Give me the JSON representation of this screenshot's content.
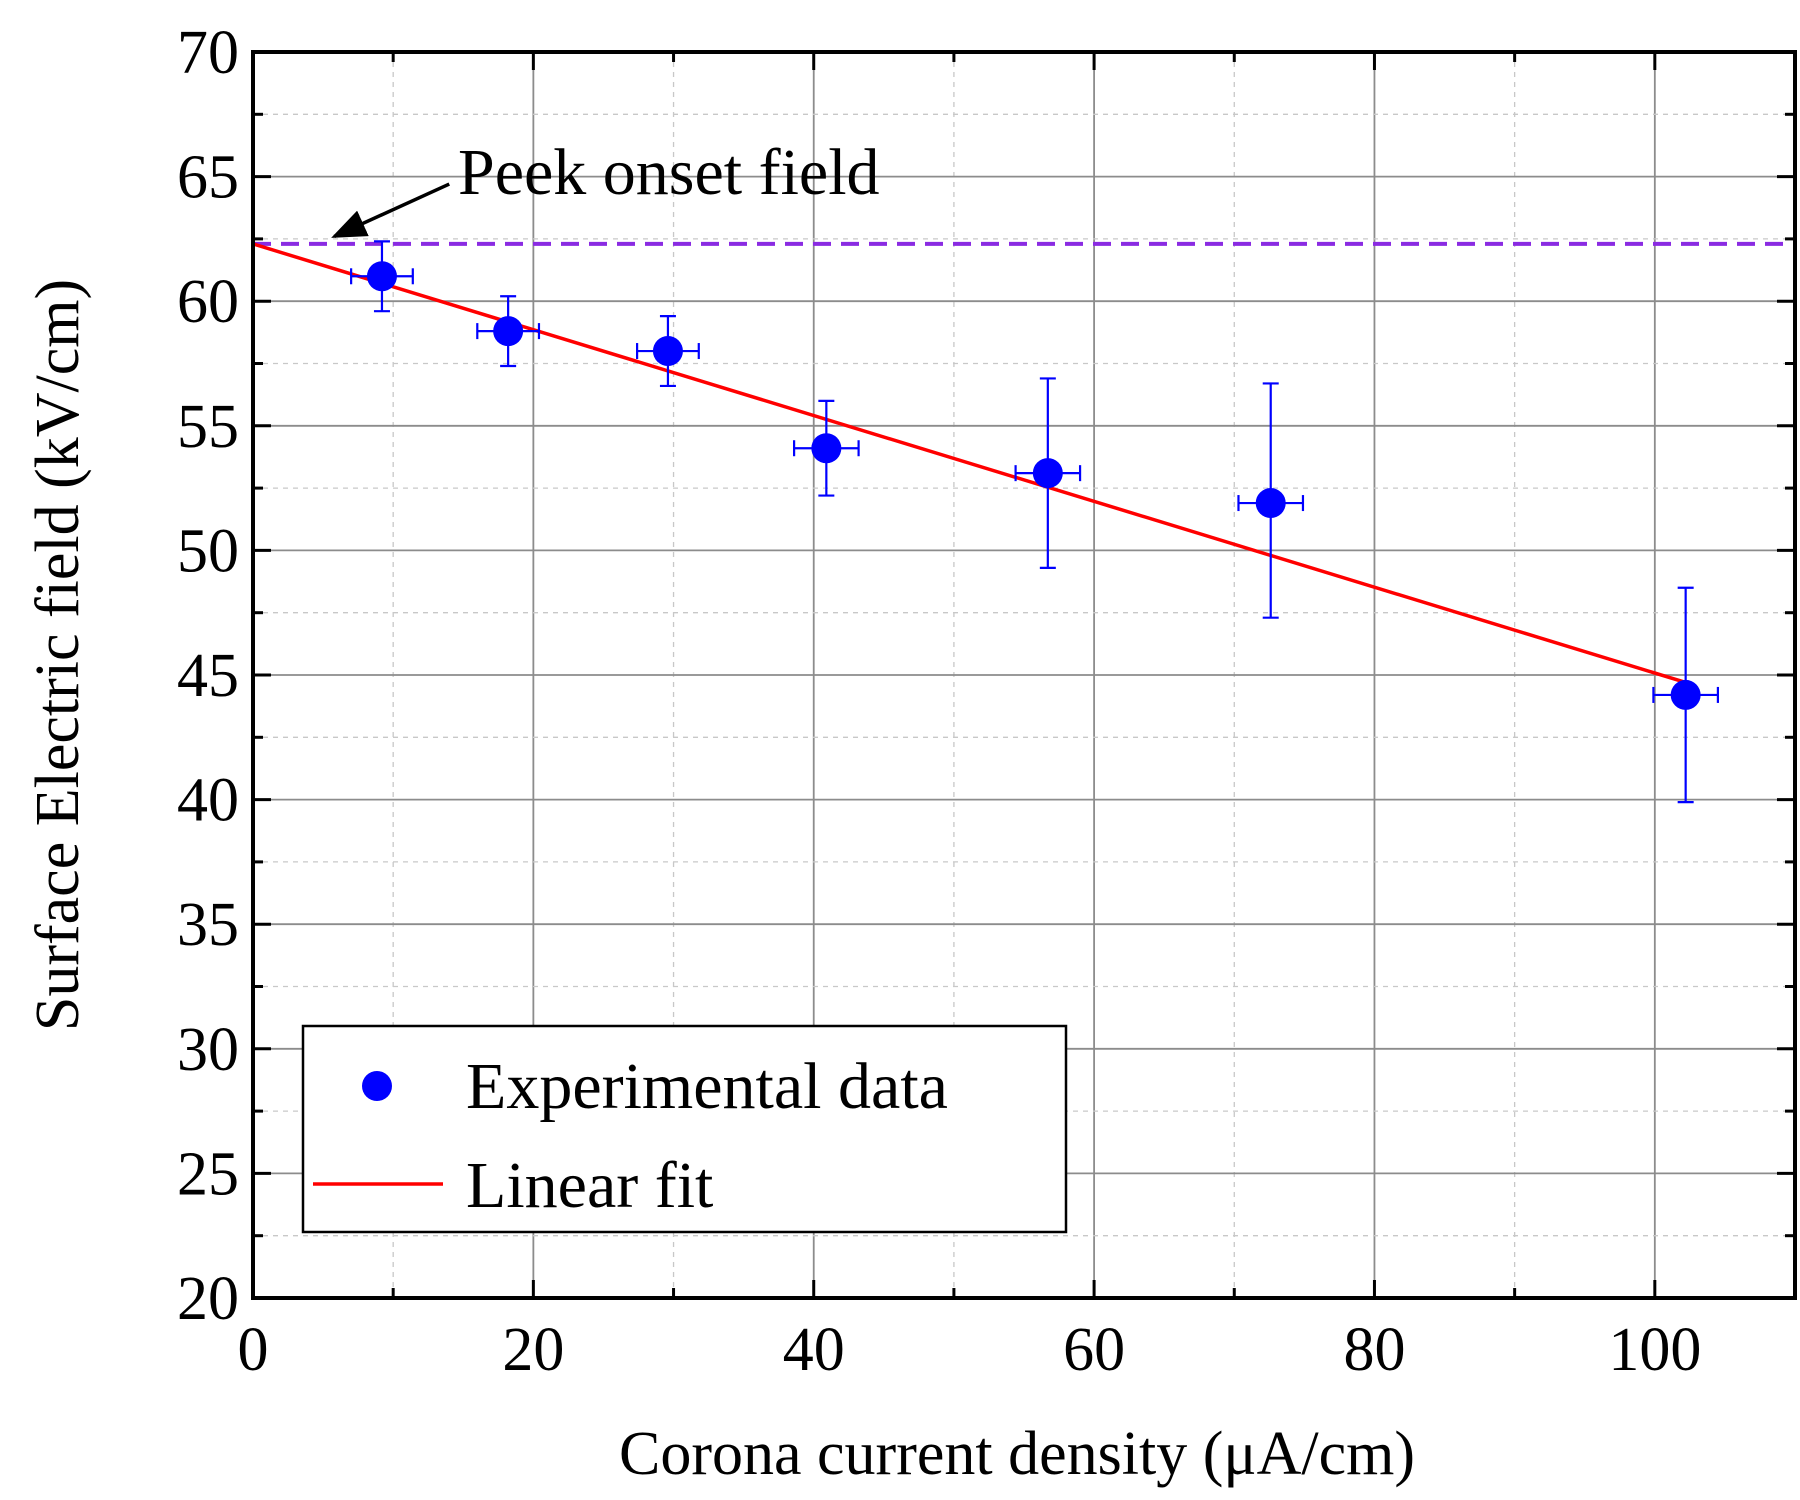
{
  "chart_data": {
    "type": "scatter",
    "title": "",
    "xlabel": "Corona current density (μA/cm)",
    "ylabel": "Surface Electric field (kV/cm)",
    "xlim": [
      0,
      110
    ],
    "ylim": [
      20,
      70
    ],
    "xticks": [
      0,
      20,
      40,
      60,
      80,
      100
    ],
    "yticks": [
      20,
      25,
      30,
      35,
      40,
      45,
      50,
      55,
      60,
      65,
      70
    ],
    "grid": true,
    "series": [
      {
        "name": "Experimental data",
        "kind": "scatter",
        "color": "#0000ff",
        "x": [
          9.2,
          18.2,
          29.6,
          40.9,
          56.7,
          72.6,
          102.2
        ],
        "y": [
          61.0,
          58.8,
          58.0,
          54.1,
          53.1,
          51.9,
          44.2
        ],
        "x_err": [
          2.2,
          2.2,
          2.2,
          2.3,
          2.3,
          2.3,
          2.3
        ],
        "y_err_low": [
          1.4,
          1.4,
          1.4,
          1.9,
          3.8,
          4.6,
          4.3
        ],
        "y_err_high": [
          1.4,
          1.4,
          1.4,
          1.9,
          3.8,
          4.8,
          4.3
        ]
      },
      {
        "name": "Linear fit",
        "kind": "line",
        "color": "#ff0000",
        "x": [
          0,
          102.2
        ],
        "y": [
          62.3,
          44.7
        ]
      }
    ],
    "reference_line": {
      "label": "Peek onset field",
      "y": 62.3,
      "color": "#8a2be2",
      "style": "dashed"
    },
    "annotation": {
      "text": "Peek onset field",
      "arrow_from": [
        14.0,
        64.7
      ],
      "arrow_to": [
        5.8,
        62.6
      ]
    },
    "legend": {
      "position": "bottom-left",
      "entries": [
        "Experimental data",
        "Linear fit"
      ]
    }
  }
}
